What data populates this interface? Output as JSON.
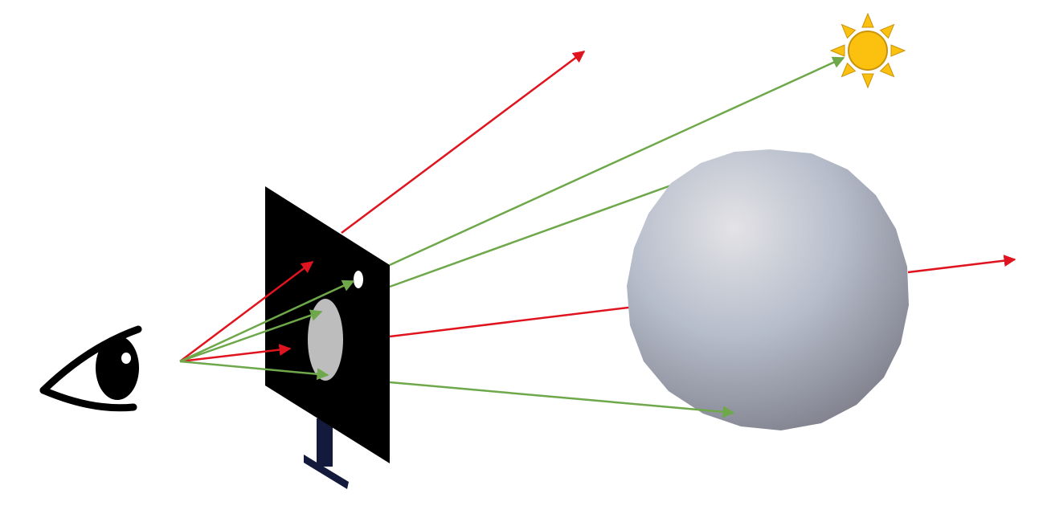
{
  "diagram": {
    "subject": "ray-casting",
    "colors": {
      "miss_ray": "#e0141e",
      "hit_ray": "#6ea84a",
      "screen": "#000000",
      "screen_stand": "#141a3c",
      "sun_fill": "#fcc00f",
      "sun_stroke": "#c8940a",
      "eye": "#000000",
      "sphere_light": "#e4e3e6",
      "sphere_mid": "#b6bdcb",
      "sphere_dark": "#777682",
      "background": "#ffffff"
    }
  }
}
